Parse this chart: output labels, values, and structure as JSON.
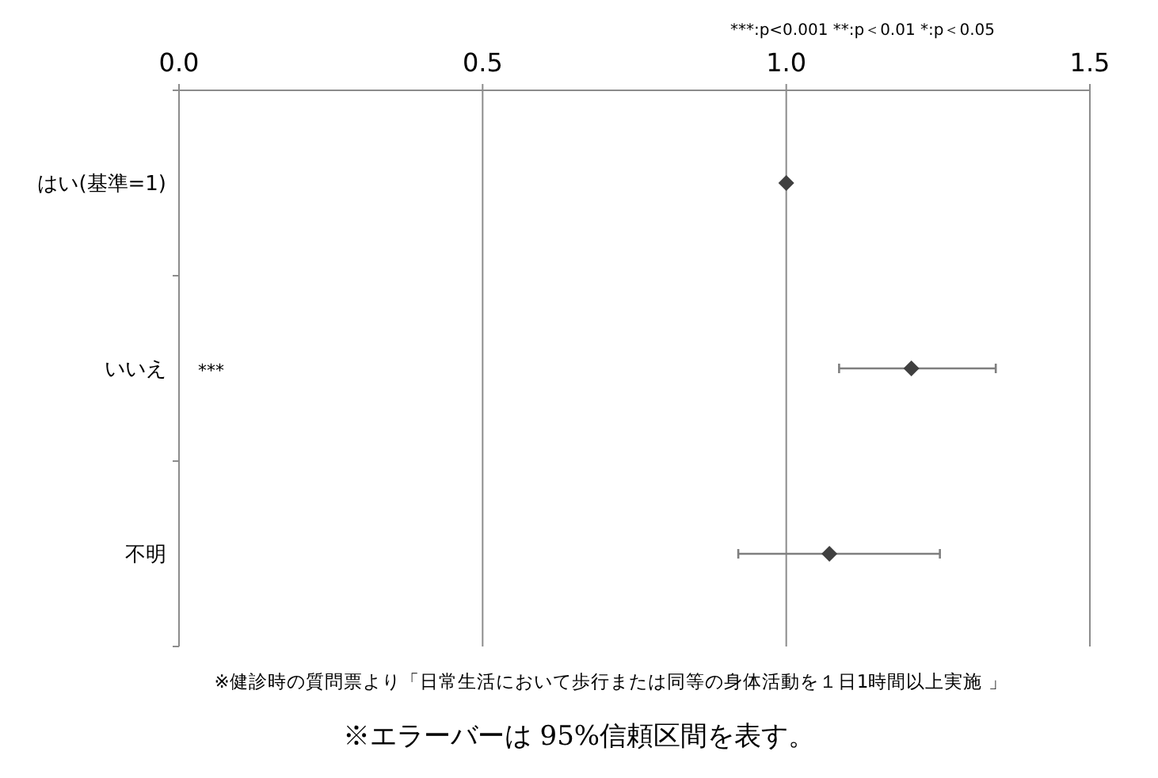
{
  "chart_data": {
    "type": "scatter",
    "orientation": "horizontal",
    "categories": [
      "はい(基準=1)",
      "いいえ",
      "不明"
    ],
    "series": [
      {
        "color": "#404040",
        "values": [
          1.0,
          1.206,
          1.071
        ],
        "errors": [
          null,
          [
            1.087,
            1.345
          ],
          [
            0.921,
            1.253
          ]
        ]
      }
    ],
    "marker": "diamond",
    "xlim": [
      0,
      1.5
    ],
    "xticks": [
      {
        "value": 0,
        "label": "0.0"
      },
      {
        "value": 0.5,
        "label": "0.5"
      },
      {
        "value": 1,
        "label": "1.0"
      },
      {
        "value": 1.5,
        "label": "1.5"
      }
    ],
    "grid": "x",
    "annotations": [
      "***:p<0.001  **:p＜0.01  *:p＜0.05",
      "***",
      "※健診時の質問票より「日常生活において歩行または同等の身体活動を１日1時間以上実施 」",
      "※エラーバーは 95%信頼区間を表す。"
    ]
  }
}
